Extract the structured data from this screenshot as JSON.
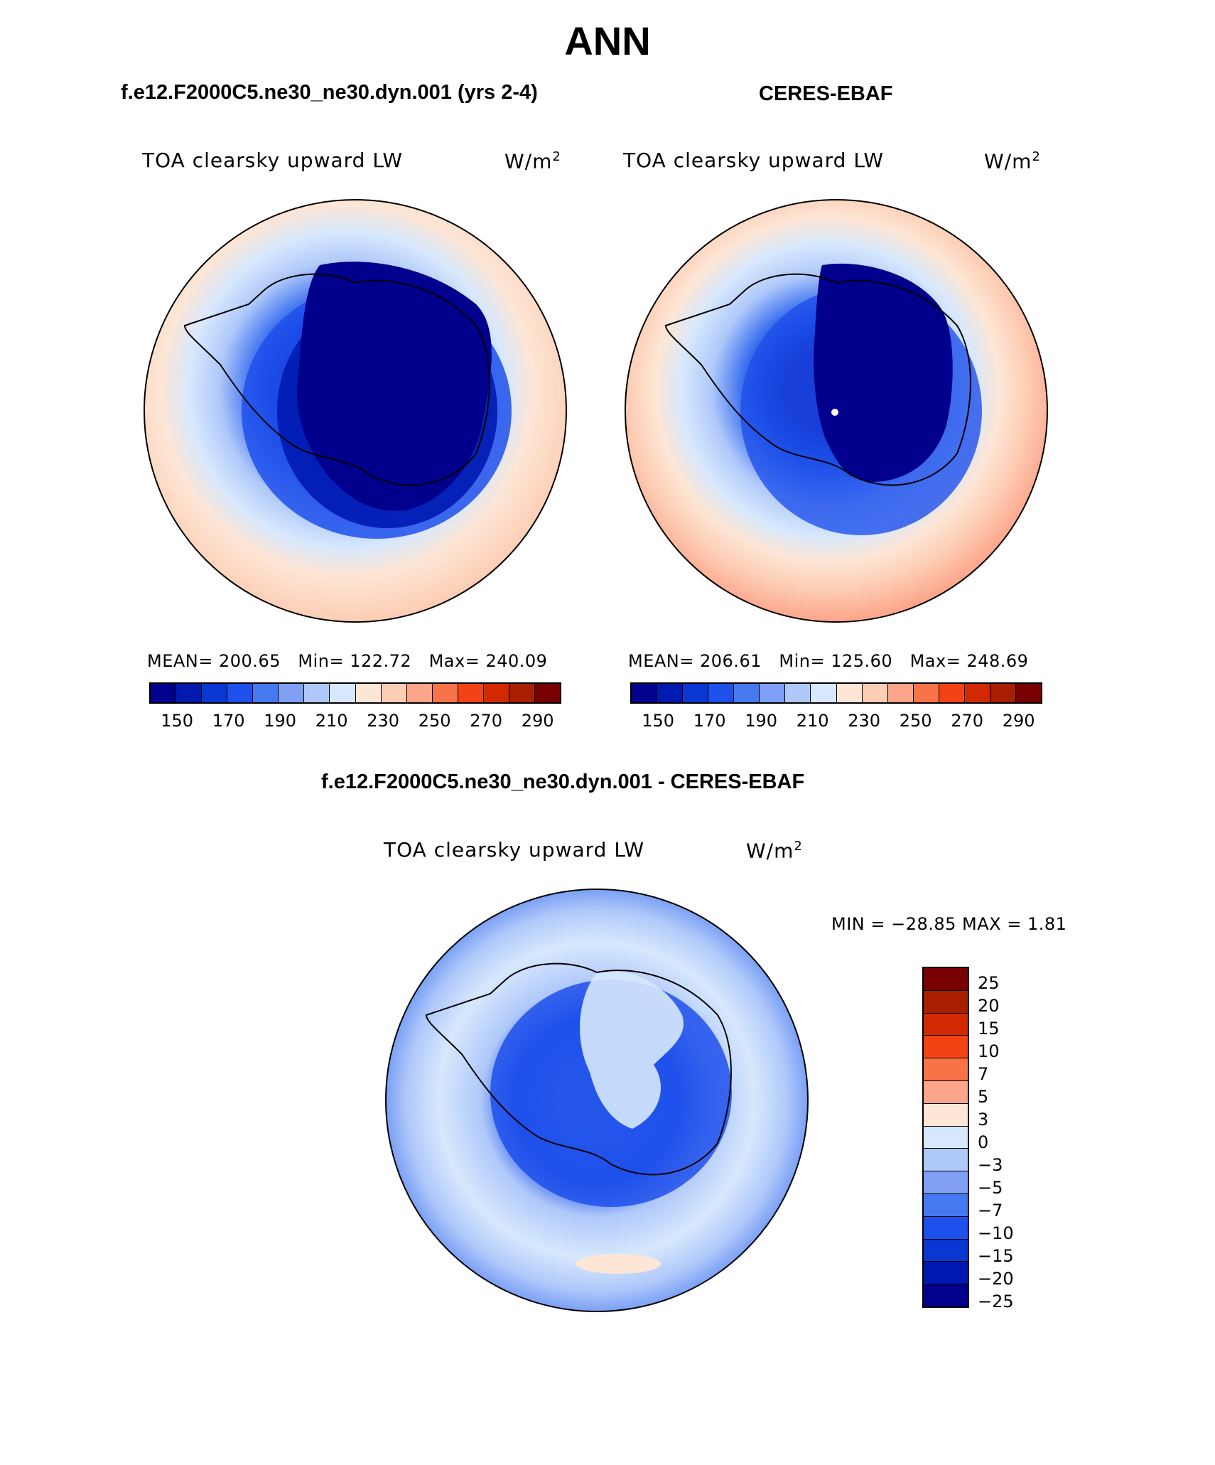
{
  "title": "ANN",
  "units_main": "W/m",
  "units_sup": "2",
  "left_panel": {
    "case_title": "f.e12.F2000C5.ne30_ne30.dyn.001 (yrs 2-4)",
    "variable": "TOA clearsky upward LW",
    "mean_label": "MEAN=",
    "mean": "200.65",
    "min_label": "Min=",
    "min": "122.72",
    "max_label": "Max=",
    "max": "240.09"
  },
  "right_panel": {
    "case_title": "CERES-EBAF",
    "variable": "TOA clearsky upward LW",
    "mean_label": "MEAN=",
    "mean": "206.61",
    "min_label": "Min=",
    "min": "125.60",
    "max_label": "Max=",
    "max": "248.69"
  },
  "diff_panel": {
    "case_title": "f.e12.F2000C5.ne30_ne30.dyn.001 - CERES-EBAF",
    "variable": "TOA clearsky upward LW",
    "minmax_text": "MIN = −28.85 MAX =    1.81"
  },
  "colorbar_main": {
    "colors": [
      "#00008c",
      "#0019b0",
      "#0a37d2",
      "#1e50eb",
      "#4678f0",
      "#7fa0f5",
      "#afc8fa",
      "#d7e8fd",
      "#fde6d6",
      "#fdcdb4",
      "#fca58a",
      "#f87448",
      "#f34214",
      "#d22a00",
      "#aa1e00",
      "#780000"
    ],
    "tick_labels": [
      "150",
      "170",
      "190",
      "210",
      "230",
      "250",
      "270",
      "290"
    ]
  },
  "colorbar_diff": {
    "colors": [
      "#780000",
      "#aa1e00",
      "#d22a00",
      "#f34214",
      "#f87448",
      "#fca58a",
      "#fde6d6",
      "#d7e8fd",
      "#afc8fa",
      "#7fa0f5",
      "#4678f0",
      "#1e50eb",
      "#0a37d2",
      "#0019b0",
      "#00008c"
    ],
    "tick_labels": [
      "25",
      "20",
      "15",
      "10",
      "7",
      "5",
      "3",
      "0",
      "−3",
      "−5",
      "−7",
      "−10",
      "−15",
      "−20",
      "−25"
    ]
  }
}
